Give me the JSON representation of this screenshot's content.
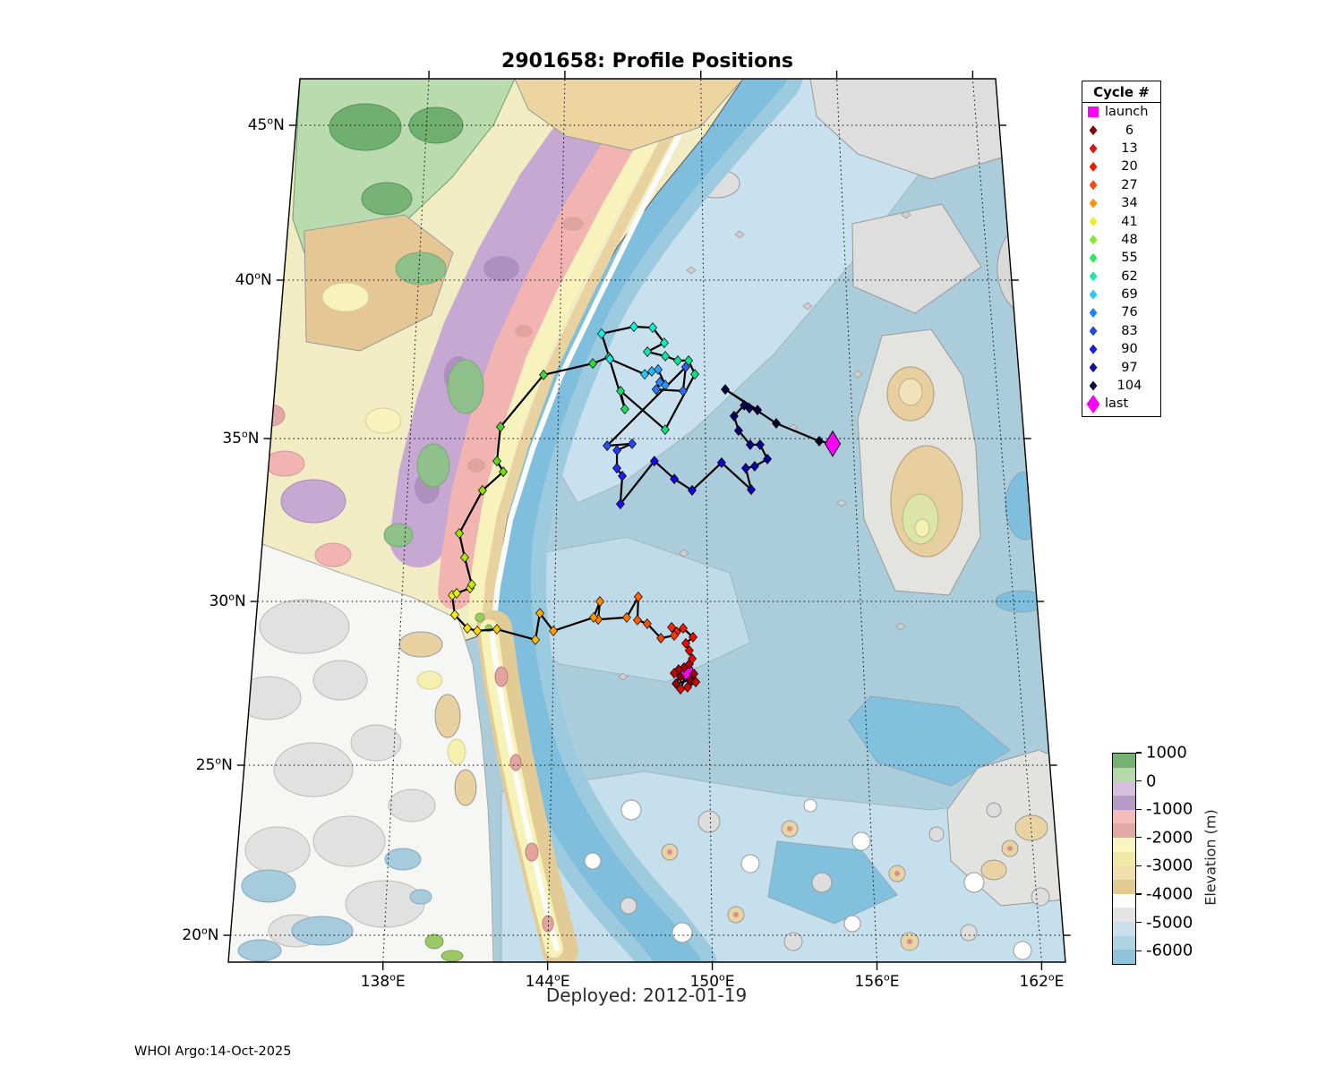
{
  "header": {
    "title": "2901658: Profile Positions"
  },
  "footer": {
    "deployed": "Deployed: 2012-01-19",
    "credit": "WHOI Argo:14-Oct-2025"
  },
  "axes": {
    "lat_ticks": [
      {
        "num": "45",
        "deg": "o",
        "hemi": "N",
        "value": 45
      },
      {
        "num": "40",
        "deg": "o",
        "hemi": "N",
        "value": 40
      },
      {
        "num": "35",
        "deg": "o",
        "hemi": "N",
        "value": 35
      },
      {
        "num": "30",
        "deg": "o",
        "hemi": "N",
        "value": 30
      },
      {
        "num": "25",
        "deg": "o",
        "hemi": "N",
        "value": 25
      },
      {
        "num": "20",
        "deg": "o",
        "hemi": "N",
        "value": 20
      }
    ],
    "lon_ticks": [
      {
        "num": "138",
        "deg": "o",
        "hemi": "E",
        "value": 138
      },
      {
        "num": "144",
        "deg": "o",
        "hemi": "E",
        "value": 144
      },
      {
        "num": "150",
        "deg": "o",
        "hemi": "E",
        "value": 150
      },
      {
        "num": "156",
        "deg": "o",
        "hemi": "E",
        "value": 156
      },
      {
        "num": "162",
        "deg": "o",
        "hemi": "E",
        "value": 162
      }
    ]
  },
  "legend": {
    "title": "Cycle #",
    "entries": [
      {
        "label": "launch",
        "marker": "square",
        "color": "#FF00FF"
      },
      {
        "label": "6",
        "marker": "diamond",
        "color": "#8B0000"
      },
      {
        "label": "13",
        "marker": "diamond",
        "color": "#E31212"
      },
      {
        "label": "20",
        "marker": "diamond",
        "color": "#F51A00"
      },
      {
        "label": "27",
        "marker": "diamond",
        "color": "#FF4510"
      },
      {
        "label": "34",
        "marker": "diamond",
        "color": "#FF9010"
      },
      {
        "label": "41",
        "marker": "diamond",
        "color": "#EDED2E"
      },
      {
        "label": "48",
        "marker": "diamond",
        "color": "#84EC2C"
      },
      {
        "label": "55",
        "marker": "diamond",
        "color": "#30E65E"
      },
      {
        "label": "62",
        "marker": "diamond",
        "color": "#1FE8A0"
      },
      {
        "label": "69",
        "marker": "diamond",
        "color": "#28C8F0"
      },
      {
        "label": "76",
        "marker": "diamond",
        "color": "#2080FF"
      },
      {
        "label": "83",
        "marker": "diamond",
        "color": "#2048E8"
      },
      {
        "label": "90",
        "marker": "diamond",
        "color": "#1820D8"
      },
      {
        "label": "97",
        "marker": "diamond",
        "color": "#1010A0"
      },
      {
        "label": "104",
        "marker": "diamond",
        "color": "#0E0E3C"
      },
      {
        "label": "last",
        "marker": "diamond-large",
        "color": "#FF00FF"
      }
    ]
  },
  "colorbar": {
    "label": "Elevation (m)",
    "tick_labels": [
      "1000",
      "0",
      "-1000",
      "-2000",
      "-3000",
      "-4000",
      "-5000",
      "-6000"
    ],
    "tick_values": [
      1000,
      0,
      -1000,
      -2000,
      -3000,
      -4000,
      -5000,
      -6000
    ],
    "range": [
      1000,
      -6500
    ],
    "segments": [
      "#74B26F",
      "#B5D9A9",
      "#D6BEDE",
      "#B79BC7",
      "#F4BCBA",
      "#E2A8A3",
      "#FAF6C0",
      "#EFE8A6",
      "#F1DFAF",
      "#E2CA92",
      "#FCFCFA",
      "#E4E4E4",
      "#CBE0EA",
      "#AFD3E2",
      "#8FC5DC"
    ]
  },
  "chart_data": {
    "type": "scatter",
    "title": "2901658: Profile Positions",
    "x_axis": {
      "label_format": "deg E",
      "range_lon": [
        132.3,
        163.2
      ],
      "gridlines": [
        138,
        144,
        150,
        156,
        162
      ]
    },
    "y_axis": {
      "label_format": "deg N",
      "range_lat": [
        19.2,
        46.5
      ],
      "gridlines": [
        20,
        25,
        30,
        35,
        40,
        45
      ]
    },
    "grid": "dotted",
    "legend_position": "outside-top-right",
    "launch": {
      "lon": 149.15,
      "lat": 27.81,
      "color": "#FF00FF"
    },
    "last": {
      "lon": 155.14,
      "lat": 34.84,
      "color": "#FF00FF"
    },
    "trajectory": [
      [
        148.91,
        27.7,
        "#800000"
      ],
      [
        149.29,
        27.6,
        "#8B0000"
      ],
      [
        148.74,
        27.49,
        "#960000"
      ],
      [
        149.05,
        27.98,
        "#A00000"
      ],
      [
        149.43,
        27.79,
        "#AB0000"
      ],
      [
        148.84,
        27.92,
        "#B40000"
      ],
      [
        149.26,
        28.09,
        "#BE0000"
      ],
      [
        148.67,
        27.81,
        "#C80000"
      ],
      [
        149.5,
        27.54,
        "#D20000"
      ],
      [
        149.18,
        27.38,
        "#DC0000"
      ],
      [
        148.91,
        27.32,
        "#E60000"
      ],
      [
        149.37,
        28.25,
        "#EE0000"
      ],
      [
        149.26,
        28.5,
        "#F40000"
      ],
      [
        149.13,
        28.72,
        "#FA0000"
      ],
      [
        149.41,
        28.91,
        "#FF0600"
      ],
      [
        149.03,
        29.18,
        "#FF1200"
      ],
      [
        148.78,
        29.07,
        "#FF1E00"
      ],
      [
        148.58,
        29.21,
        "#FF2A00"
      ],
      [
        148.68,
        28.96,
        "#FF3600"
      ],
      [
        148.16,
        28.88,
        "#FF4200"
      ],
      [
        147.63,
        29.32,
        "#FF4E00"
      ],
      [
        147.25,
        29.43,
        "#FF5A00"
      ],
      [
        147.28,
        30.14,
        "#FF6600"
      ],
      [
        146.83,
        29.51,
        "#FF7200"
      ],
      [
        145.72,
        29.45,
        "#FF7E00"
      ],
      [
        145.78,
        30.0,
        "#FF8A00"
      ],
      [
        145.54,
        29.51,
        "#FF9600"
      ],
      [
        143.98,
        29.1,
        "#FFA200"
      ],
      [
        143.44,
        29.64,
        "#FFAE00"
      ],
      [
        143.29,
        28.83,
        "#FFBA00"
      ],
      [
        141.78,
        29.15,
        "#FFC800"
      ],
      [
        141.02,
        29.1,
        "#FFD800"
      ],
      [
        140.63,
        29.18,
        "#FFE800"
      ],
      [
        140.12,
        29.59,
        "#F8F000"
      ],
      [
        139.99,
        30.19,
        "#EEF200"
      ],
      [
        140.16,
        30.25,
        "#E0F000"
      ],
      [
        140.68,
        30.41,
        "#D0EE00"
      ],
      [
        140.74,
        30.52,
        "#C0EC00"
      ],
      [
        140.42,
        31.35,
        "#A8E800"
      ],
      [
        140.17,
        32.09,
        "#98E400"
      ],
      [
        141.03,
        33.41,
        "#84E006"
      ],
      [
        141.84,
        33.98,
        "#70DC12"
      ],
      [
        141.57,
        34.31,
        "#5CD81E"
      ],
      [
        141.67,
        35.37,
        "#4AD42A"
      ],
      [
        143.37,
        37.01,
        "#3ED63B"
      ],
      [
        145.39,
        37.37,
        "#34D847"
      ],
      [
        146.05,
        37.57,
        "#2ADA53"
      ],
      [
        146.72,
        35.93,
        "#20DC5F"
      ],
      [
        146.54,
        36.5,
        "#18DE6B"
      ],
      [
        148.36,
        35.28,
        "#10E077"
      ],
      [
        149.59,
        37.03,
        "#0AE283"
      ],
      [
        149.34,
        37.46,
        "#06E48F"
      ],
      [
        148.89,
        37.46,
        "#04E69B"
      ],
      [
        148.38,
        37.6,
        "#05E8A7"
      ],
      [
        147.64,
        37.74,
        "#08EAB3"
      ],
      [
        148.34,
        38.02,
        "#0BECBF"
      ],
      [
        147.86,
        38.5,
        "#0EEECB"
      ],
      [
        147.08,
        38.53,
        "#12F0D7"
      ],
      [
        145.74,
        38.31,
        "#16F2E3"
      ],
      [
        146.09,
        37.51,
        "#1AE6EE"
      ],
      [
        147.53,
        37.03,
        "#1ED0F6"
      ],
      [
        147.82,
        37.12,
        "#22BAFC"
      ],
      [
        148.08,
        37.18,
        "#26A4FF"
      ],
      [
        148.37,
        36.69,
        "#2996FF"
      ],
      [
        148.15,
        36.78,
        "#2C88FF"
      ],
      [
        148.0,
        36.55,
        "#2E7AFF"
      ],
      [
        149.1,
        36.5,
        "#2F6CFF"
      ],
      [
        149.22,
        37.26,
        "#2E5EFF"
      ],
      [
        146.01,
        34.78,
        "#2C50FF"
      ],
      [
        147.02,
        34.84,
        "#2942FF"
      ],
      [
        146.41,
        34.64,
        "#2634FF"
      ],
      [
        146.41,
        34.09,
        "#2326FF"
      ],
      [
        146.63,
        33.85,
        "#2018FF"
      ],
      [
        146.56,
        32.99,
        "#1D0AFF"
      ],
      [
        147.92,
        34.31,
        "#1A00F4"
      ],
      [
        148.72,
        33.76,
        "#1700E7"
      ],
      [
        149.43,
        33.41,
        "#1400DA"
      ],
      [
        150.63,
        34.26,
        "#1100CD"
      ],
      [
        151.8,
        33.43,
        "#0E00C0"
      ],
      [
        151.6,
        34.09,
        "#0C00B3"
      ],
      [
        151.96,
        34.15,
        "#0A00A6"
      ],
      [
        152.48,
        34.37,
        "#080099"
      ],
      [
        152.2,
        34.81,
        "#06008C"
      ],
      [
        151.8,
        34.81,
        "#05007F"
      ],
      [
        151.34,
        35.25,
        "#040072"
      ],
      [
        151.17,
        35.71,
        "#030065"
      ],
      [
        151.59,
        36.05,
        "#020058"
      ],
      [
        151.8,
        35.96,
        "#02004B"
      ],
      [
        152.13,
        35.9,
        "#01003E"
      ],
      [
        150.83,
        36.55,
        "#010034"
      ],
      [
        152.88,
        35.48,
        "#00002C"
      ],
      [
        154.6,
        34.92,
        "#000024"
      ]
    ]
  }
}
